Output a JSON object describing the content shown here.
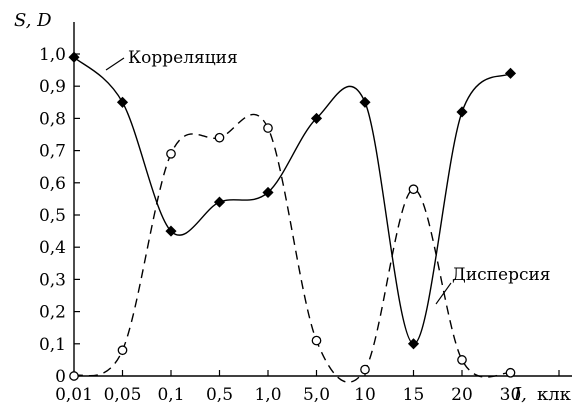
{
  "chart_data": {
    "type": "line",
    "ylabel": "S, D",
    "xlabel_symbol": "I,",
    "xlabel_unit": "клк",
    "categories": [
      "0,01",
      "0,05",
      "0,1",
      "0,5",
      "1,0",
      "5,0",
      "10",
      "15",
      "20",
      "30"
    ],
    "ylim": [
      0,
      1.0
    ],
    "yticks": [
      "0",
      "0,1",
      "0,2",
      "0,3",
      "0,4",
      "0,5",
      "0,6",
      "0,7",
      "0,8",
      "0,9",
      "1,0"
    ],
    "grid": false,
    "legend": "inline labels",
    "series": [
      {
        "name": "Корреляция",
        "line_style": "solid",
        "marker": "filled-diamond",
        "color": "#000000",
        "values": [
          0.99,
          0.85,
          0.45,
          0.54,
          0.57,
          0.8,
          0.85,
          0.1,
          0.82,
          0.94
        ]
      },
      {
        "name": "Дисперсия",
        "line_style": "dashed",
        "marker": "open-circle",
        "color": "#000000",
        "values": [
          0.0,
          0.08,
          0.69,
          0.74,
          0.77,
          0.11,
          0.02,
          0.58,
          0.05,
          0.01
        ]
      }
    ]
  }
}
